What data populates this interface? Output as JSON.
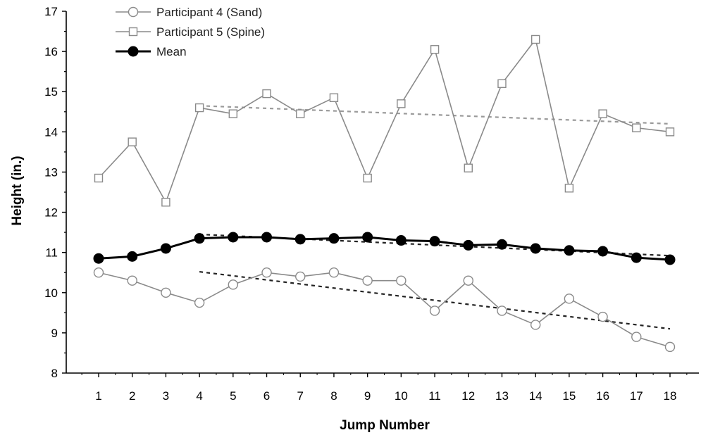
{
  "chart_data": {
    "type": "line",
    "xlabel": "Jump Number",
    "ylabel": "Height (in.)",
    "x": [
      1,
      2,
      3,
      4,
      5,
      6,
      7,
      8,
      9,
      10,
      11,
      12,
      13,
      14,
      15,
      16,
      17,
      18
    ],
    "x_ticks": [
      "1",
      "2",
      "3",
      "4",
      "5",
      "6",
      "7",
      "8",
      "9",
      "10",
      "11",
      "12",
      "13",
      "14",
      "15",
      "16",
      "17",
      "18"
    ],
    "ylim": [
      8,
      17
    ],
    "y_ticks": [
      "8",
      "9",
      "10",
      "11",
      "12",
      "13",
      "14",
      "15",
      "16",
      "17"
    ],
    "legend_position": "top-left",
    "grid": false,
    "series": [
      {
        "name": "Participant 4 (Sand)",
        "marker": "open-circle",
        "color": "#8a8a8a",
        "values": [
          10.5,
          10.3,
          10.0,
          9.75,
          10.2,
          10.5,
          10.4,
          10.5,
          10.3,
          10.3,
          9.55,
          10.3,
          9.55,
          9.2,
          9.85,
          9.4,
          8.9,
          8.65
        ]
      },
      {
        "name": "Participant 5 (Spine)",
        "marker": "open-square",
        "color": "#8a8a8a",
        "values": [
          12.85,
          13.75,
          12.25,
          14.6,
          14.45,
          14.95,
          14.45,
          14.85,
          12.85,
          14.7,
          16.05,
          13.1,
          15.2,
          16.3,
          12.6,
          14.45,
          14.1,
          14.0
        ]
      },
      {
        "name": "Mean",
        "marker": "filled-circle",
        "color": "#000000",
        "values": [
          10.85,
          10.9,
          11.1,
          11.35,
          11.38,
          11.38,
          11.33,
          11.35,
          11.38,
          11.3,
          11.28,
          11.18,
          11.2,
          11.1,
          11.05,
          11.03,
          10.87,
          10.82
        ]
      }
    ],
    "trendlines": [
      {
        "of": "Participant 5 (Spine)",
        "color": "#9a9a9a",
        "x": [
          4,
          18
        ],
        "y": [
          14.65,
          14.2
        ]
      },
      {
        "of": "Mean",
        "color": "#222222",
        "x": [
          4,
          18
        ],
        "y": [
          11.45,
          10.92
        ]
      },
      {
        "of": "Participant 4 (Sand)",
        "color": "#222222",
        "x": [
          4,
          18
        ],
        "y": [
          10.52,
          9.1
        ]
      }
    ]
  }
}
